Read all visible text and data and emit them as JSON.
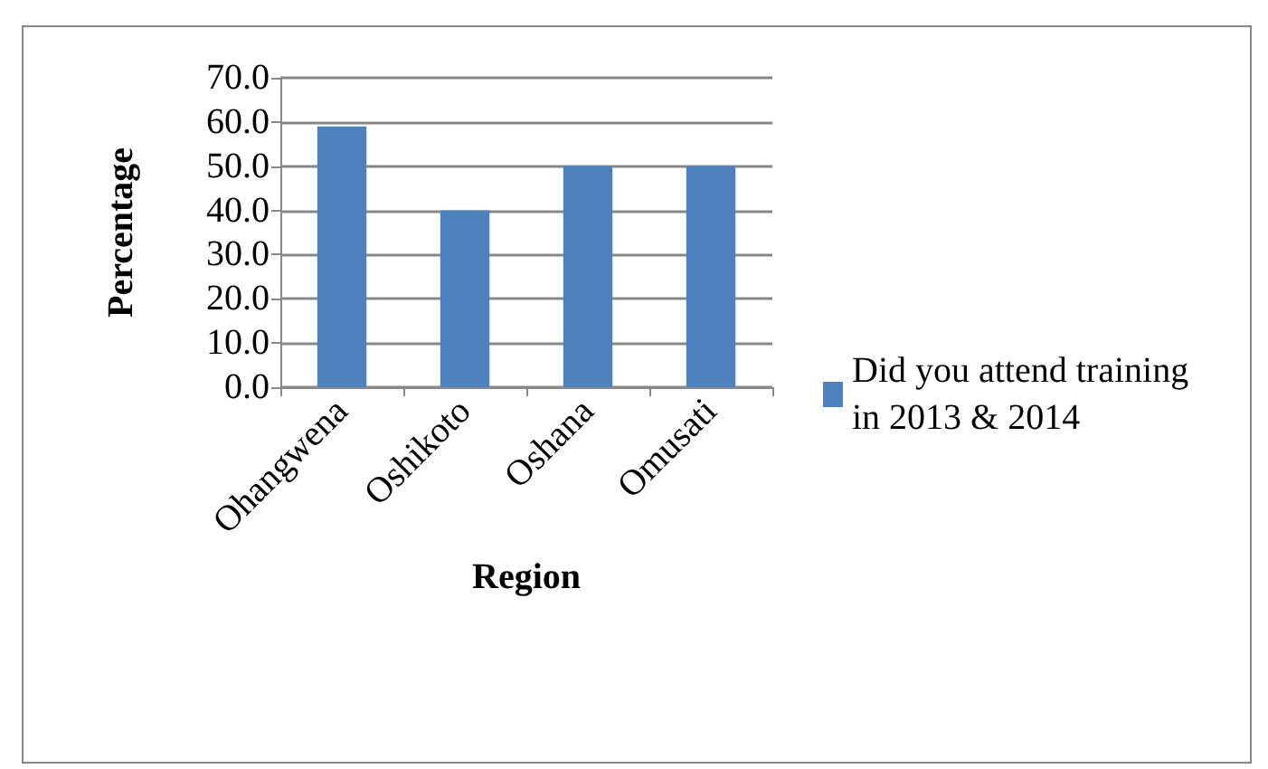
{
  "chart_data": {
    "type": "bar",
    "xlabel": "Region",
    "ylabel": "Percentage",
    "categories": [
      "Ohangwena",
      "Oshikoto",
      "Oshana",
      "Omusati"
    ],
    "series": [
      {
        "name": "Did you attend training in 2013 & 2014",
        "color": "#4f81bd",
        "values": [
          59,
          40,
          50,
          50
        ]
      }
    ],
    "ylim": [
      0,
      70
    ],
    "yticks": [
      {
        "value": 0,
        "label": "0.0"
      },
      {
        "value": 10,
        "label": "10.0"
      },
      {
        "value": 20,
        "label": "20.0"
      },
      {
        "value": 30,
        "label": "30.0"
      },
      {
        "value": 40,
        "label": "40.0"
      },
      {
        "value": 50,
        "label": "50.0"
      },
      {
        "value": 60,
        "label": "60.0"
      },
      {
        "value": 70,
        "label": "70.0"
      }
    ],
    "grid": "y",
    "legend": "right"
  }
}
